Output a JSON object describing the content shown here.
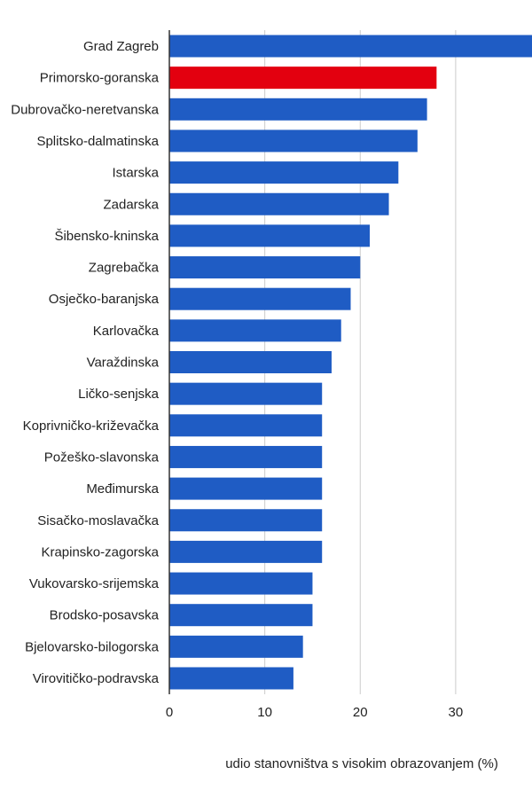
{
  "chart_data": {
    "type": "bar",
    "orientation": "horizontal",
    "xlabel": "udio stanovništva s visokim obrazovanjem (%)",
    "xlim": [
      0,
      38
    ],
    "xticks": [
      0,
      10,
      20,
      30
    ],
    "grid": true,
    "colors": {
      "default": "#1f5cc4",
      "highlight": "#e3000f",
      "grid": "#cccccc",
      "axis": "#333333"
    },
    "highlight_category": "Primorsko-goranska",
    "categories": [
      "Grad Zagreb",
      "Primorsko-goranska",
      "Dubrovačko-neretvanska",
      "Splitsko-dalmatinska",
      "Istarska",
      "Zadarska",
      "Šibensko-kninska",
      "Zagrebačka",
      "Osječko-baranjska",
      "Karlovačka",
      "Varaždinska",
      "Ličko-senjska",
      "Koprivničko-križevačka",
      "Požeško-slavonska",
      "Međimurska",
      "Sisačko-moslavačka",
      "Krapinsko-zagorska",
      "Vukovarsko-srijemska",
      "Brodsko-posavska",
      "Bjelovarsko-bilogorska",
      "Virovitičko-podravska"
    ],
    "values": [
      38,
      28,
      27,
      26,
      24,
      23,
      21,
      20,
      19,
      18,
      17,
      16,
      16,
      16,
      16,
      16,
      16,
      15,
      15,
      14,
      13
    ]
  }
}
